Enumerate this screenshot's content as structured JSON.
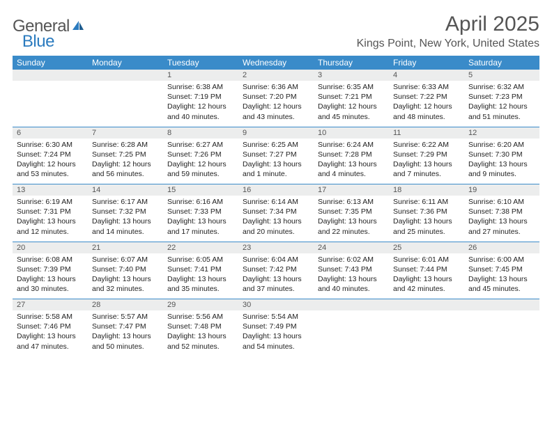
{
  "brand": {
    "general": "General",
    "blue": "Blue",
    "icon_fill": "#2b7bbf"
  },
  "header": {
    "month_title": "April 2025",
    "location": "Kings Point, New York, United States"
  },
  "colors": {
    "weekday_bg": "#3a8bc9",
    "weekday_fg": "#ffffff",
    "daynum_bg": "#eceded",
    "accent": "#2b7bbf"
  },
  "weekdays": [
    "Sunday",
    "Monday",
    "Tuesday",
    "Wednesday",
    "Thursday",
    "Friday",
    "Saturday"
  ],
  "weeks": [
    {
      "nums": [
        "",
        "",
        "1",
        "2",
        "3",
        "4",
        "5"
      ],
      "cells": [
        null,
        null,
        {
          "sunrise": "Sunrise: 6:38 AM",
          "sunset": "Sunset: 7:19 PM",
          "daylight": "Daylight: 12 hours and 40 minutes."
        },
        {
          "sunrise": "Sunrise: 6:36 AM",
          "sunset": "Sunset: 7:20 PM",
          "daylight": "Daylight: 12 hours and 43 minutes."
        },
        {
          "sunrise": "Sunrise: 6:35 AM",
          "sunset": "Sunset: 7:21 PM",
          "daylight": "Daylight: 12 hours and 45 minutes."
        },
        {
          "sunrise": "Sunrise: 6:33 AM",
          "sunset": "Sunset: 7:22 PM",
          "daylight": "Daylight: 12 hours and 48 minutes."
        },
        {
          "sunrise": "Sunrise: 6:32 AM",
          "sunset": "Sunset: 7:23 PM",
          "daylight": "Daylight: 12 hours and 51 minutes."
        }
      ]
    },
    {
      "nums": [
        "6",
        "7",
        "8",
        "9",
        "10",
        "11",
        "12"
      ],
      "cells": [
        {
          "sunrise": "Sunrise: 6:30 AM",
          "sunset": "Sunset: 7:24 PM",
          "daylight": "Daylight: 12 hours and 53 minutes."
        },
        {
          "sunrise": "Sunrise: 6:28 AM",
          "sunset": "Sunset: 7:25 PM",
          "daylight": "Daylight: 12 hours and 56 minutes."
        },
        {
          "sunrise": "Sunrise: 6:27 AM",
          "sunset": "Sunset: 7:26 PM",
          "daylight": "Daylight: 12 hours and 59 minutes."
        },
        {
          "sunrise": "Sunrise: 6:25 AM",
          "sunset": "Sunset: 7:27 PM",
          "daylight": "Daylight: 13 hours and 1 minute."
        },
        {
          "sunrise": "Sunrise: 6:24 AM",
          "sunset": "Sunset: 7:28 PM",
          "daylight": "Daylight: 13 hours and 4 minutes."
        },
        {
          "sunrise": "Sunrise: 6:22 AM",
          "sunset": "Sunset: 7:29 PM",
          "daylight": "Daylight: 13 hours and 7 minutes."
        },
        {
          "sunrise": "Sunrise: 6:20 AM",
          "sunset": "Sunset: 7:30 PM",
          "daylight": "Daylight: 13 hours and 9 minutes."
        }
      ]
    },
    {
      "nums": [
        "13",
        "14",
        "15",
        "16",
        "17",
        "18",
        "19"
      ],
      "cells": [
        {
          "sunrise": "Sunrise: 6:19 AM",
          "sunset": "Sunset: 7:31 PM",
          "daylight": "Daylight: 13 hours and 12 minutes."
        },
        {
          "sunrise": "Sunrise: 6:17 AM",
          "sunset": "Sunset: 7:32 PM",
          "daylight": "Daylight: 13 hours and 14 minutes."
        },
        {
          "sunrise": "Sunrise: 6:16 AM",
          "sunset": "Sunset: 7:33 PM",
          "daylight": "Daylight: 13 hours and 17 minutes."
        },
        {
          "sunrise": "Sunrise: 6:14 AM",
          "sunset": "Sunset: 7:34 PM",
          "daylight": "Daylight: 13 hours and 20 minutes."
        },
        {
          "sunrise": "Sunrise: 6:13 AM",
          "sunset": "Sunset: 7:35 PM",
          "daylight": "Daylight: 13 hours and 22 minutes."
        },
        {
          "sunrise": "Sunrise: 6:11 AM",
          "sunset": "Sunset: 7:36 PM",
          "daylight": "Daylight: 13 hours and 25 minutes."
        },
        {
          "sunrise": "Sunrise: 6:10 AM",
          "sunset": "Sunset: 7:38 PM",
          "daylight": "Daylight: 13 hours and 27 minutes."
        }
      ]
    },
    {
      "nums": [
        "20",
        "21",
        "22",
        "23",
        "24",
        "25",
        "26"
      ],
      "cells": [
        {
          "sunrise": "Sunrise: 6:08 AM",
          "sunset": "Sunset: 7:39 PM",
          "daylight": "Daylight: 13 hours and 30 minutes."
        },
        {
          "sunrise": "Sunrise: 6:07 AM",
          "sunset": "Sunset: 7:40 PM",
          "daylight": "Daylight: 13 hours and 32 minutes."
        },
        {
          "sunrise": "Sunrise: 6:05 AM",
          "sunset": "Sunset: 7:41 PM",
          "daylight": "Daylight: 13 hours and 35 minutes."
        },
        {
          "sunrise": "Sunrise: 6:04 AM",
          "sunset": "Sunset: 7:42 PM",
          "daylight": "Daylight: 13 hours and 37 minutes."
        },
        {
          "sunrise": "Sunrise: 6:02 AM",
          "sunset": "Sunset: 7:43 PM",
          "daylight": "Daylight: 13 hours and 40 minutes."
        },
        {
          "sunrise": "Sunrise: 6:01 AM",
          "sunset": "Sunset: 7:44 PM",
          "daylight": "Daylight: 13 hours and 42 minutes."
        },
        {
          "sunrise": "Sunrise: 6:00 AM",
          "sunset": "Sunset: 7:45 PM",
          "daylight": "Daylight: 13 hours and 45 minutes."
        }
      ]
    },
    {
      "nums": [
        "27",
        "28",
        "29",
        "30",
        "",
        "",
        ""
      ],
      "cells": [
        {
          "sunrise": "Sunrise: 5:58 AM",
          "sunset": "Sunset: 7:46 PM",
          "daylight": "Daylight: 13 hours and 47 minutes."
        },
        {
          "sunrise": "Sunrise: 5:57 AM",
          "sunset": "Sunset: 7:47 PM",
          "daylight": "Daylight: 13 hours and 50 minutes."
        },
        {
          "sunrise": "Sunrise: 5:56 AM",
          "sunset": "Sunset: 7:48 PM",
          "daylight": "Daylight: 13 hours and 52 minutes."
        },
        {
          "sunrise": "Sunrise: 5:54 AM",
          "sunset": "Sunset: 7:49 PM",
          "daylight": "Daylight: 13 hours and 54 minutes."
        },
        null,
        null,
        null
      ]
    }
  ]
}
